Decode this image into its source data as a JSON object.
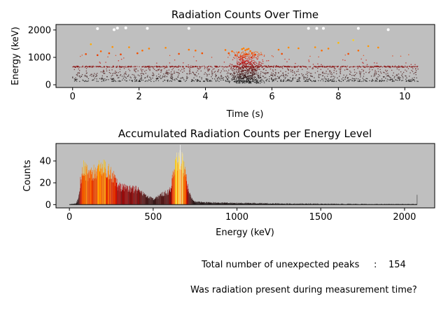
{
  "chart_data": [
    {
      "type": "scatter",
      "title": "Radiation Counts Over Time",
      "xlabel": "Time (s)",
      "ylabel": "Energy (keV)",
      "xlim": [
        -0.5,
        10.9
      ],
      "ylim": [
        -100,
        2200
      ],
      "xticks": [
        0,
        2,
        4,
        6,
        8,
        10
      ],
      "yticks": [
        0,
        1000,
        2000
      ],
      "background": "#bfbfbf",
      "colormap": [
        "#1a1a1a",
        "#5a1a1a",
        "#cc0000",
        "#ff6600",
        "#ffcc00",
        "#ffffff"
      ],
      "series": [
        {
          "points": [
            [
              0.75,
              2050
            ],
            [
              1.25,
              2010
            ],
            [
              1.35,
              2070
            ],
            [
              1.6,
              2075
            ],
            [
              2.25,
              2060
            ],
            [
              3.5,
              2060
            ],
            [
              7.1,
              2060
            ],
            [
              7.35,
              2060
            ],
            [
              7.55,
              2060
            ],
            [
              8.6,
              2060
            ],
            [
              9.5,
              2010
            ],
            [
              0.4,
              1120
            ],
            [
              0.55,
              1480
            ],
            [
              0.75,
              1080
            ],
            [
              0.85,
              1220
            ],
            [
              1.1,
              1150
            ],
            [
              1.2,
              1380
            ],
            [
              1.45,
              1110
            ],
            [
              1.7,
              1370
            ],
            [
              1.95,
              1150
            ],
            [
              2.1,
              1250
            ],
            [
              2.3,
              1320
            ],
            [
              2.8,
              1350
            ],
            [
              3.2,
              1130
            ],
            [
              3.5,
              1280
            ],
            [
              3.7,
              1250
            ],
            [
              3.9,
              1150
            ],
            [
              4.6,
              1270
            ],
            [
              4.7,
              1150
            ],
            [
              4.8,
              1220
            ],
            [
              4.9,
              1080
            ],
            [
              5.0,
              1180
            ],
            [
              5.1,
              1300
            ],
            [
              5.15,
              1330
            ],
            [
              5.2,
              1260
            ],
            [
              5.25,
              1290
            ],
            [
              5.3,
              1310
            ],
            [
              5.35,
              1230
            ],
            [
              5.4,
              1160
            ],
            [
              5.5,
              1100
            ],
            [
              6.2,
              1280
            ],
            [
              6.3,
              1130
            ],
            [
              6.5,
              1360
            ],
            [
              6.8,
              1330
            ],
            [
              7.3,
              1370
            ],
            [
              7.5,
              1250
            ],
            [
              7.7,
              1320
            ],
            [
              8.0,
              1530
            ],
            [
              8.3,
              1130
            ],
            [
              8.45,
              1630
            ],
            [
              8.6,
              1250
            ],
            [
              8.9,
              1410
            ],
            [
              9.2,
              1360
            ]
          ]
        }
      ]
    },
    {
      "type": "histogram",
      "title": "Accumulated Radiation Counts per Energy Level",
      "xlabel": "Energy (keV)",
      "ylabel": "Counts",
      "xlim": [
        -80,
        2180
      ],
      "ylim": [
        -3,
        56
      ],
      "xticks": [
        0,
        500,
        1000,
        1500,
        2000
      ],
      "yticks": [
        0,
        20,
        40
      ],
      "background": "#bfbfbf",
      "profile": [
        [
          0,
          0
        ],
        [
          40,
          1
        ],
        [
          55,
          6
        ],
        [
          65,
          20
        ],
        [
          80,
          34
        ],
        [
          100,
          30
        ],
        [
          130,
          27
        ],
        [
          170,
          32
        ],
        [
          200,
          33
        ],
        [
          230,
          32
        ],
        [
          260,
          26
        ],
        [
          290,
          17
        ],
        [
          330,
          15
        ],
        [
          380,
          14
        ],
        [
          420,
          13
        ],
        [
          460,
          7
        ],
        [
          500,
          5
        ],
        [
          550,
          9
        ],
        [
          600,
          13
        ],
        [
          640,
          40
        ],
        [
          662,
          44
        ],
        [
          685,
          33
        ],
        [
          710,
          12
        ],
        [
          740,
          3
        ],
        [
          800,
          2
        ],
        [
          1000,
          1.5
        ],
        [
          1200,
          1
        ],
        [
          1500,
          0.6
        ],
        [
          1800,
          0.3
        ],
        [
          2075,
          0.2
        ]
      ],
      "spikes": [
        [
          2075,
          9
        ]
      ]
    }
  ],
  "summary": {
    "unexpected_peaks_label": "Total number of unexpected peaks",
    "separator": ":",
    "unexpected_peaks_value": "154",
    "question": "Was radiation present during measurement time?"
  }
}
